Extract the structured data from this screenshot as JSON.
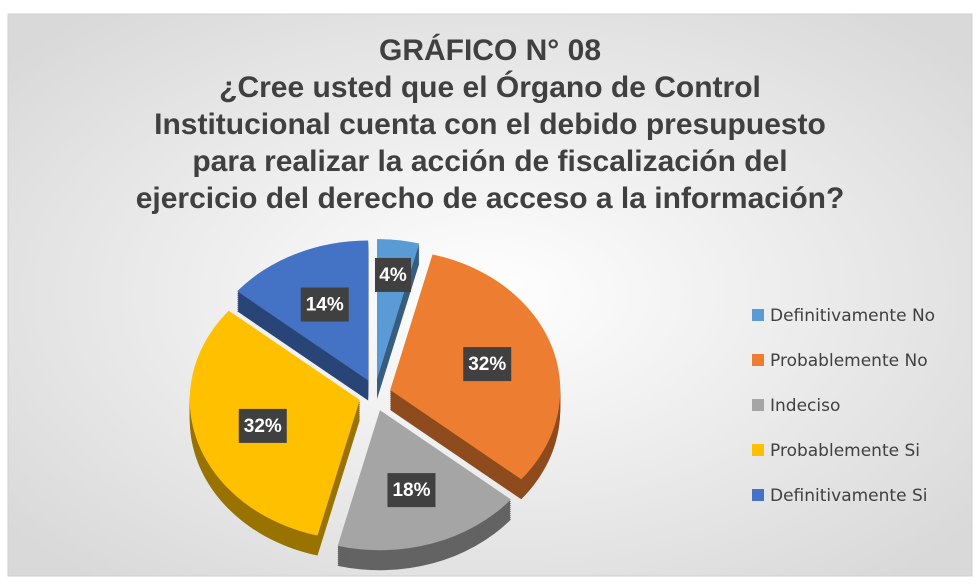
{
  "chart_data": {
    "type": "pie",
    "title": [
      "GRÁFICO N° 08",
      "¿Cree usted que el Órgano de Control",
      "Institucional cuenta con el debido presupuesto",
      "para realizar la acción de fiscalización del",
      "ejercicio del derecho de acceso a la información?"
    ],
    "categories": [
      "Definitivamente No",
      "Probablemente No",
      "Indeciso",
      "Probablemente Si",
      "Definitivamente Si"
    ],
    "values": [
      4,
      32,
      18,
      32,
      14
    ],
    "value_labels": [
      "4%",
      "32%",
      "18%",
      "32%",
      "14%"
    ],
    "colors": [
      "#5b9bd5",
      "#ed7d31",
      "#a5a5a5",
      "#ffc000",
      "#4472c4"
    ],
    "legend": "right"
  }
}
